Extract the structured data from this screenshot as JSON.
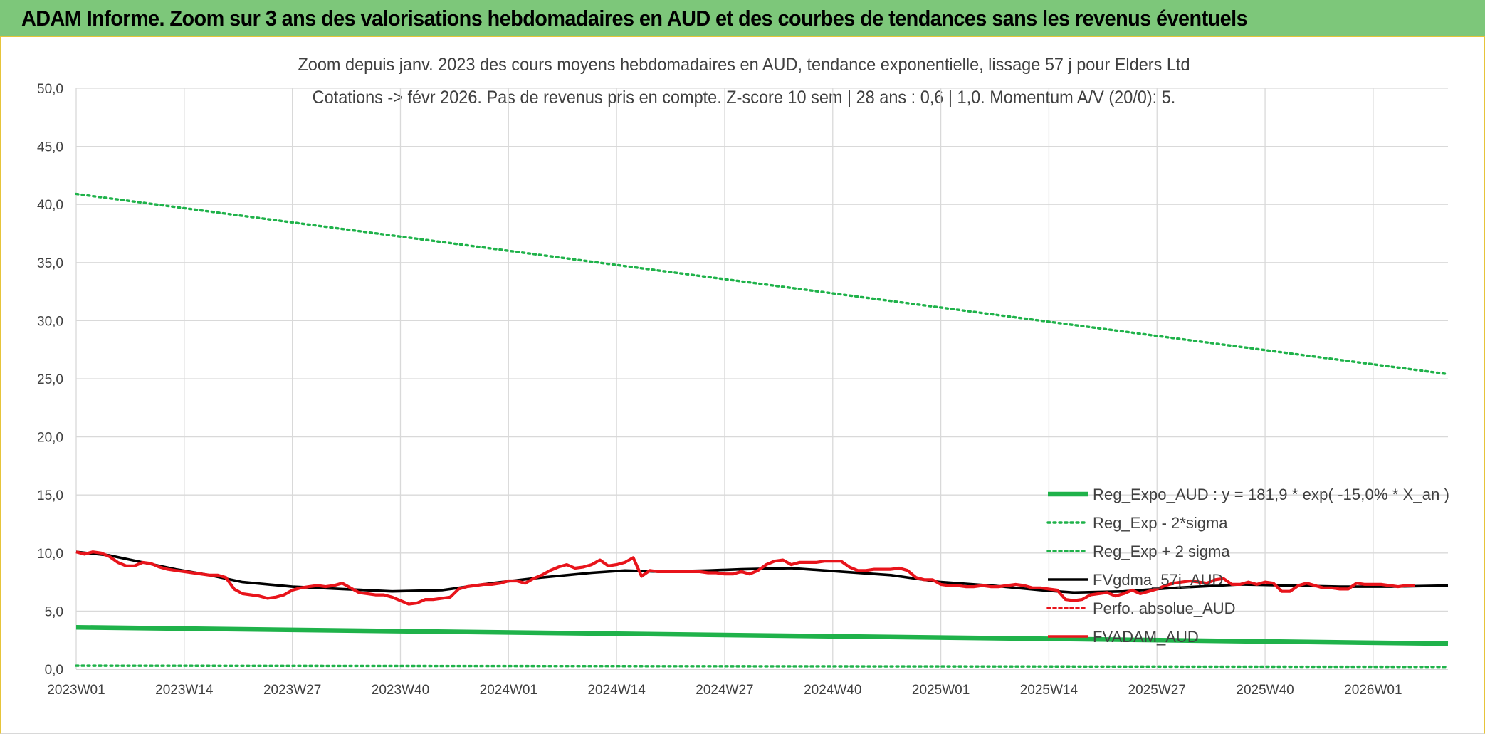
{
  "banner": {
    "title": "ADAM Informe. Zoom sur 3 ans des valorisations hebdomadaires en AUD et des courbes de tendances sans les revenus éventuels"
  },
  "colors": {
    "banner_bg": "#7dc77a",
    "banner_border": "#e6c43a",
    "green": "#1fb24a",
    "red": "#e8141b",
    "black": "#000000",
    "grid": "#d9d9d9"
  },
  "chart_data": {
    "type": "line",
    "title_line1": "Zoom depuis janv. 2023 des cours moyens hebdomadaires en AUD, tendance exponentielle, lissage 57 j pour Elders Ltd",
    "title_line2": "Cotations -> févr 2026. Pas de revenus pris en compte. Z-score 10 sem | 28 ans : 0,6 | 1,0. Momentum A/V (20/0): 5.",
    "xlabel": "",
    "ylabel": "",
    "ylim": [
      0,
      50
    ],
    "y_ticks": [
      "0,0",
      "5,0",
      "10,0",
      "15,0",
      "20,0",
      "25,0",
      "30,0",
      "35,0",
      "40,0",
      "45,0",
      "50,0"
    ],
    "x_tick_labels": [
      "2023W01",
      "2023W14",
      "2023W27",
      "2023W40",
      "2024W01",
      "2024W14",
      "2024W27",
      "2024W40",
      "2025W01",
      "2025W14",
      "2025W27",
      "2025W40",
      "2026W01"
    ],
    "x_tick_weeks": [
      0,
      13,
      26,
      39,
      52,
      65,
      78,
      91,
      104,
      117,
      130,
      143,
      156
    ],
    "x_range_weeks": [
      0,
      165
    ],
    "grid": true,
    "legend_position": "bottom-right",
    "series": [
      {
        "name": "Reg_Expo_AUD : y = 181,9 * exp( -15,0% *  X_an )",
        "color": "#1fb24a",
        "style": "thick-solid",
        "points": [
          [
            0,
            3.6
          ],
          [
            165,
            2.2
          ]
        ]
      },
      {
        "name": "Reg_Exp - 2*sigma",
        "color": "#1fb24a",
        "style": "dotted",
        "points": [
          [
            0,
            0.3
          ],
          [
            165,
            0.2
          ]
        ]
      },
      {
        "name": "Reg_Exp + 2 sigma",
        "color": "#1fb24a",
        "style": "dotted",
        "points": [
          [
            0,
            40.9
          ],
          [
            165,
            25.4
          ]
        ]
      },
      {
        "name": "FVgdma_57j_AUD",
        "color": "#000000",
        "style": "solid",
        "points": [
          [
            0,
            10.1
          ],
          [
            4,
            9.8
          ],
          [
            8,
            9.2
          ],
          [
            12,
            8.6
          ],
          [
            16,
            8.1
          ],
          [
            20,
            7.5
          ],
          [
            26,
            7.1
          ],
          [
            32,
            6.9
          ],
          [
            38,
            6.7
          ],
          [
            44,
            6.8
          ],
          [
            50,
            7.4
          ],
          [
            56,
            7.9
          ],
          [
            62,
            8.3
          ],
          [
            66,
            8.5
          ],
          [
            70,
            8.4
          ],
          [
            76,
            8.5
          ],
          [
            80,
            8.6
          ],
          [
            86,
            8.7
          ],
          [
            92,
            8.4
          ],
          [
            98,
            8.1
          ],
          [
            104,
            7.5
          ],
          [
            110,
            7.2
          ],
          [
            116,
            6.8
          ],
          [
            120,
            6.6
          ],
          [
            126,
            6.7
          ],
          [
            132,
            7.0
          ],
          [
            140,
            7.3
          ],
          [
            146,
            7.2
          ],
          [
            152,
            7.1
          ],
          [
            158,
            7.1
          ],
          [
            165,
            7.2
          ]
        ]
      },
      {
        "name": "Perfo. absolue_AUD",
        "color": "#e8141b",
        "style": "dotted",
        "points": []
      },
      {
        "name": "FVADAM_AUD",
        "color": "#e8141b",
        "style": "solid",
        "points": [
          [
            0,
            10.1
          ],
          [
            1,
            9.9
          ],
          [
            2,
            10.1
          ],
          [
            3,
            10.0
          ],
          [
            4,
            9.7
          ],
          [
            5,
            9.2
          ],
          [
            6,
            8.9
          ],
          [
            7,
            8.9
          ],
          [
            8,
            9.2
          ],
          [
            9,
            9.1
          ],
          [
            10,
            8.8
          ],
          [
            11,
            8.6
          ],
          [
            12,
            8.5
          ],
          [
            13,
            8.4
          ],
          [
            14,
            8.3
          ],
          [
            15,
            8.2
          ],
          [
            16,
            8.1
          ],
          [
            17,
            8.1
          ],
          [
            18,
            7.9
          ],
          [
            19,
            6.9
          ],
          [
            20,
            6.5
          ],
          [
            21,
            6.4
          ],
          [
            22,
            6.3
          ],
          [
            23,
            6.1
          ],
          [
            24,
            6.2
          ],
          [
            25,
            6.4
          ],
          [
            26,
            6.8
          ],
          [
            27,
            7.0
          ],
          [
            28,
            7.1
          ],
          [
            29,
            7.2
          ],
          [
            30,
            7.1
          ],
          [
            31,
            7.2
          ],
          [
            32,
            7.4
          ],
          [
            33,
            7.0
          ],
          [
            34,
            6.6
          ],
          [
            35,
            6.5
          ],
          [
            36,
            6.4
          ],
          [
            37,
            6.4
          ],
          [
            38,
            6.2
          ],
          [
            39,
            5.9
          ],
          [
            40,
            5.6
          ],
          [
            41,
            5.7
          ],
          [
            42,
            6.0
          ],
          [
            43,
            6.0
          ],
          [
            44,
            6.1
          ],
          [
            45,
            6.2
          ],
          [
            46,
            6.9
          ],
          [
            47,
            7.1
          ],
          [
            48,
            7.2
          ],
          [
            49,
            7.3
          ],
          [
            50,
            7.3
          ],
          [
            51,
            7.4
          ],
          [
            52,
            7.6
          ],
          [
            53,
            7.6
          ],
          [
            54,
            7.4
          ],
          [
            55,
            7.8
          ],
          [
            56,
            8.1
          ],
          [
            57,
            8.5
          ],
          [
            58,
            8.8
          ],
          [
            59,
            9.0
          ],
          [
            60,
            8.7
          ],
          [
            61,
            8.8
          ],
          [
            62,
            9.0
          ],
          [
            63,
            9.4
          ],
          [
            64,
            8.9
          ],
          [
            65,
            9.0
          ],
          [
            66,
            9.2
          ],
          [
            67,
            9.6
          ],
          [
            68,
            8.0
          ],
          [
            69,
            8.5
          ],
          [
            70,
            8.4
          ],
          [
            71,
            8.4
          ],
          [
            72,
            8.4
          ],
          [
            73,
            8.4
          ],
          [
            74,
            8.4
          ],
          [
            75,
            8.4
          ],
          [
            76,
            8.3
          ],
          [
            77,
            8.3
          ],
          [
            78,
            8.2
          ],
          [
            79,
            8.2
          ],
          [
            80,
            8.4
          ],
          [
            81,
            8.2
          ],
          [
            82,
            8.5
          ],
          [
            83,
            9.0
          ],
          [
            84,
            9.3
          ],
          [
            85,
            9.4
          ],
          [
            86,
            9.0
          ],
          [
            87,
            9.2
          ],
          [
            88,
            9.2
          ],
          [
            89,
            9.2
          ],
          [
            90,
            9.3
          ],
          [
            91,
            9.3
          ],
          [
            92,
            9.3
          ],
          [
            93,
            8.8
          ],
          [
            94,
            8.5
          ],
          [
            95,
            8.5
          ],
          [
            96,
            8.6
          ],
          [
            97,
            8.6
          ],
          [
            98,
            8.6
          ],
          [
            99,
            8.7
          ],
          [
            100,
            8.5
          ],
          [
            101,
            7.9
          ],
          [
            102,
            7.7
          ],
          [
            103,
            7.7
          ],
          [
            104,
            7.3
          ],
          [
            105,
            7.2
          ],
          [
            106,
            7.2
          ],
          [
            107,
            7.1
          ],
          [
            108,
            7.1
          ],
          [
            109,
            7.2
          ],
          [
            110,
            7.1
          ],
          [
            111,
            7.1
          ],
          [
            112,
            7.2
          ],
          [
            113,
            7.3
          ],
          [
            114,
            7.2
          ],
          [
            115,
            7.0
          ],
          [
            116,
            7.0
          ],
          [
            117,
            6.9
          ],
          [
            118,
            6.8
          ],
          [
            119,
            6.0
          ],
          [
            120,
            5.9
          ],
          [
            121,
            6.0
          ],
          [
            122,
            6.4
          ],
          [
            123,
            6.5
          ],
          [
            124,
            6.6
          ],
          [
            125,
            6.3
          ],
          [
            126,
            6.5
          ],
          [
            127,
            6.8
          ],
          [
            128,
            6.5
          ],
          [
            129,
            6.7
          ],
          [
            130,
            6.9
          ],
          [
            131,
            7.2
          ],
          [
            132,
            7.4
          ],
          [
            133,
            7.5
          ],
          [
            134,
            7.6
          ],
          [
            135,
            7.5
          ],
          [
            136,
            7.4
          ],
          [
            137,
            7.7
          ],
          [
            138,
            7.8
          ],
          [
            139,
            7.3
          ],
          [
            140,
            7.3
          ],
          [
            141,
            7.5
          ],
          [
            142,
            7.3
          ],
          [
            143,
            7.5
          ],
          [
            144,
            7.4
          ],
          [
            145,
            6.7
          ],
          [
            146,
            6.7
          ],
          [
            147,
            7.2
          ],
          [
            148,
            7.4
          ],
          [
            149,
            7.2
          ],
          [
            150,
            7.0
          ],
          [
            151,
            7.0
          ],
          [
            152,
            6.9
          ],
          [
            153,
            6.9
          ],
          [
            154,
            7.4
          ],
          [
            155,
            7.3
          ],
          [
            156,
            7.3
          ],
          [
            157,
            7.3
          ],
          [
            158,
            7.2
          ],
          [
            159,
            7.1
          ],
          [
            160,
            7.2
          ],
          [
            161,
            7.2
          ]
        ]
      }
    ]
  }
}
